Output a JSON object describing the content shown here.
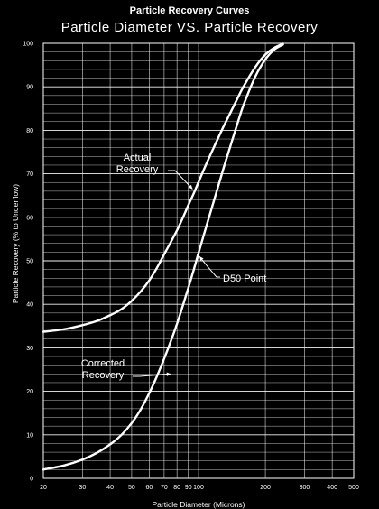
{
  "chart_data": {
    "type": "line",
    "title": "Particle Recovery Curves",
    "subtitle": "Particle Diameter VS. Particle Recovery",
    "xlabel": "Particle Diameter (Microns)",
    "ylabel": "Particle Recovery (% to Underflow)",
    "xscale": "log",
    "xlim": [
      20,
      500
    ],
    "ylim": [
      0,
      100
    ],
    "grid": true,
    "x_tick_labels": [
      "20",
      "30",
      "40",
      "50",
      "60",
      "70",
      "80",
      "90",
      "100",
      "200",
      "300",
      "400",
      "500"
    ],
    "x_tick_values": [
      20,
      30,
      40,
      50,
      60,
      70,
      80,
      90,
      100,
      200,
      300,
      400,
      500
    ],
    "y_tick_labels": [
      "0",
      "10",
      "20",
      "30",
      "40",
      "50",
      "60",
      "70",
      "80",
      "90",
      "100"
    ],
    "y_tick_values": [
      0,
      10,
      20,
      30,
      40,
      50,
      60,
      70,
      80,
      90,
      100
    ],
    "series": [
      {
        "name": "Actual Recovery",
        "x": [
          20,
          25,
          30,
          35,
          40,
          45,
          50,
          55,
          60,
          65,
          70,
          75,
          80,
          85,
          90,
          95,
          100,
          110,
          120,
          130,
          140,
          150,
          160,
          180,
          200,
          220,
          240
        ],
        "y": [
          33.7,
          34.3,
          35.2,
          36.2,
          37.5,
          38.9,
          40.8,
          43.0,
          45.5,
          48.4,
          51.5,
          54.3,
          57.0,
          59.9,
          62.8,
          65.4,
          68.1,
          73.0,
          77.2,
          81.0,
          84.3,
          87.4,
          90.2,
          94.5,
          97.4,
          99.0,
          99.9
        ]
      },
      {
        "name": "Corrected Recovery",
        "x": [
          20,
          25,
          30,
          35,
          40,
          45,
          50,
          55,
          60,
          65,
          70,
          75,
          80,
          85,
          90,
          95,
          100,
          110,
          120,
          130,
          140,
          150,
          160,
          180,
          200,
          220,
          240
        ],
        "y": [
          2.0,
          3.0,
          4.3,
          5.9,
          7.8,
          10.0,
          12.7,
          15.9,
          19.6,
          23.5,
          27.5,
          31.5,
          35.5,
          39.7,
          43.8,
          47.8,
          51.8,
          59.0,
          65.5,
          71.5,
          76.8,
          81.7,
          86.0,
          92.3,
          96.3,
          98.6,
          99.7
        ]
      }
    ],
    "annotations": [
      {
        "lines": [
          "Actual",
          "Recovery"
        ],
        "arrow_to": [
          94,
          66.5
        ]
      },
      {
        "lines": [
          "D50 Point"
        ],
        "arrow_to": [
          101,
          51
        ]
      },
      {
        "lines": [
          "Corrected",
          "Recovery"
        ],
        "arrow_to": [
          75,
          24
        ]
      }
    ]
  }
}
